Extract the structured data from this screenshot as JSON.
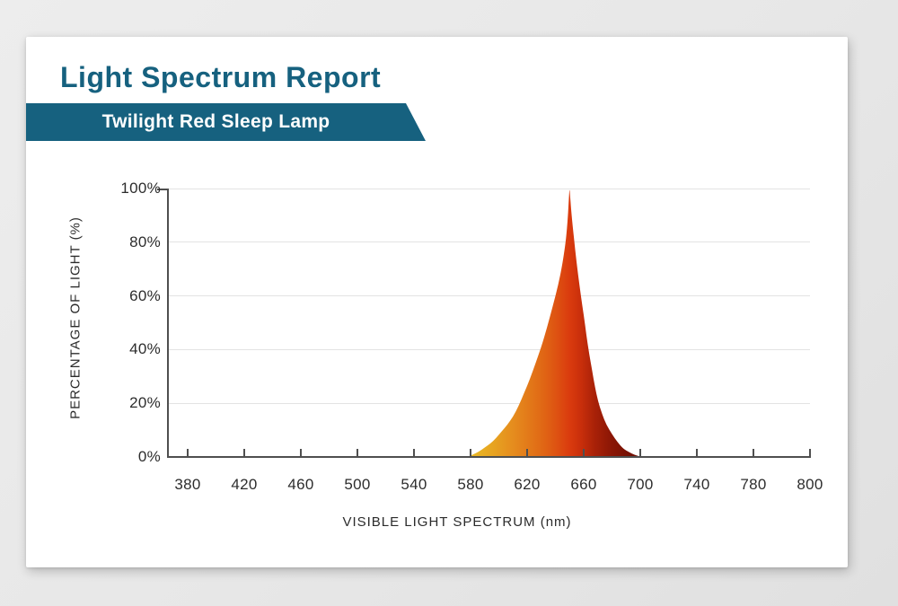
{
  "report": {
    "title": "Light Spectrum Report",
    "product_name": "Twilight Red Sleep Lamp",
    "accent_color": "#16617f",
    "banner_color": "#16617f"
  },
  "chart_data": {
    "type": "area",
    "title": "",
    "x_axis": {
      "label": "VISIBLE LIGHT SPECTRUM (nm)",
      "tick_labels": [
        "380",
        "420",
        "460",
        "500",
        "540",
        "580",
        "620",
        "660",
        "700",
        "740",
        "780",
        "800"
      ],
      "tick_values_nm": [
        380,
        420,
        460,
        500,
        540,
        580,
        620,
        660,
        700,
        740,
        780,
        800
      ],
      "range_nm": [
        380,
        800
      ]
    },
    "y_axis": {
      "label": "PERCENTAGE OF LIGHT (%)",
      "tick_labels": [
        "0%",
        "20%",
        "40%",
        "60%",
        "80%",
        "100%"
      ],
      "tick_values_pct": [
        0,
        20,
        40,
        60,
        80,
        100
      ],
      "range_pct": [
        0,
        100
      ]
    },
    "grid": "horizontal-only",
    "legend": "none",
    "series": [
      {
        "name": "Twilight Red Sleep Lamp emission",
        "peak_nm": 650,
        "peak_pct": 100,
        "points_nm_pct": [
          [
            578,
            0
          ],
          [
            582,
            1
          ],
          [
            586,
            2
          ],
          [
            590,
            3.5
          ],
          [
            594,
            5
          ],
          [
            598,
            7
          ],
          [
            602,
            9.5
          ],
          [
            606,
            12
          ],
          [
            610,
            15
          ],
          [
            614,
            19
          ],
          [
            618,
            24
          ],
          [
            622,
            29
          ],
          [
            626,
            35
          ],
          [
            630,
            41
          ],
          [
            634,
            48
          ],
          [
            638,
            56
          ],
          [
            642,
            64
          ],
          [
            645,
            72
          ],
          [
            647,
            79
          ],
          [
            648,
            84
          ],
          [
            649,
            91
          ],
          [
            649.7,
            98
          ],
          [
            650,
            100
          ],
          [
            650.4,
            97
          ],
          [
            651,
            93
          ],
          [
            652,
            87
          ],
          [
            654,
            77
          ],
          [
            656,
            68
          ],
          [
            658,
            60
          ],
          [
            660,
            53
          ],
          [
            662,
            45
          ],
          [
            664,
            38
          ],
          [
            666,
            32
          ],
          [
            668,
            26
          ],
          [
            670,
            21
          ],
          [
            673,
            16
          ],
          [
            676,
            12
          ],
          [
            680,
            8.5
          ],
          [
            684,
            5.5
          ],
          [
            688,
            3
          ],
          [
            692,
            1.8
          ],
          [
            696,
            0.8
          ],
          [
            699,
            0.3
          ],
          [
            701,
            0
          ]
        ]
      }
    ],
    "gradient_stops": [
      {
        "at": 0.0,
        "color": "#e9bc28"
      },
      {
        "at": 0.138,
        "color": "#e7a521"
      },
      {
        "at": 0.276,
        "color": "#e5891d"
      },
      {
        "at": 0.407,
        "color": "#e16d16"
      },
      {
        "at": 0.504,
        "color": "#de5412"
      },
      {
        "at": 0.585,
        "color": "#da3b0e"
      },
      {
        "at": 0.65,
        "color": "#c92f0b"
      },
      {
        "at": 0.732,
        "color": "#a82108"
      },
      {
        "at": 0.829,
        "color": "#8a1605"
      },
      {
        "at": 0.927,
        "color": "#761103"
      },
      {
        "at": 1.0,
        "color": "#6e0f03"
      }
    ],
    "colors": {
      "axis": "#4f4f4f",
      "gridline": "#e3e3e3",
      "tick_text": "#2d2d2d"
    }
  }
}
